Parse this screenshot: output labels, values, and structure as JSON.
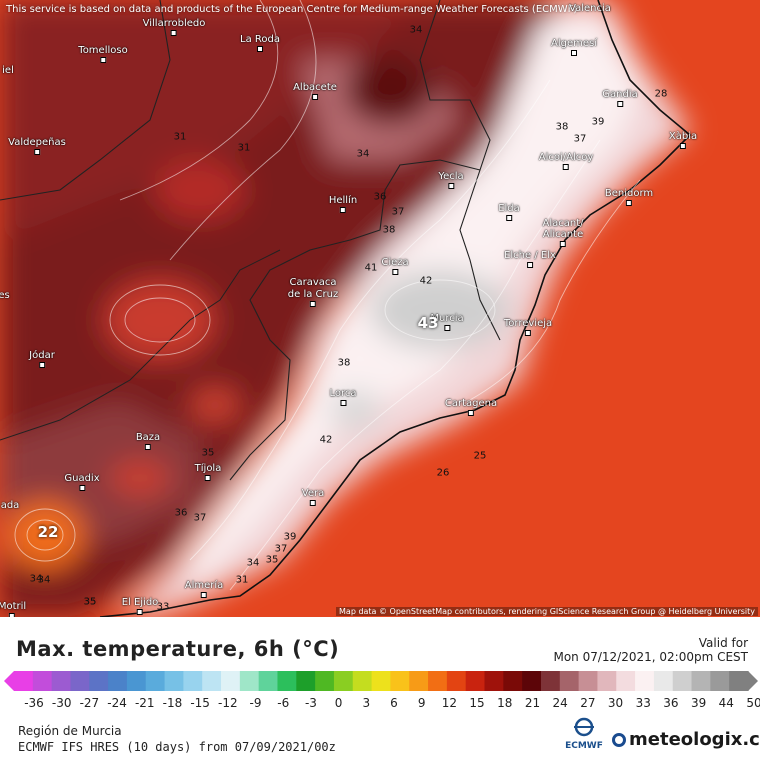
{
  "map": {
    "credit_top": "This service is based on data and products of the European Centre for Medium-range Weather Forecasts (ECMWF)",
    "credit_bottom": "Map data © OpenStreetMap contributors, rendering GIScience Research Group @ Heidelberg University",
    "cities": [
      {
        "name": "Villarrobledo"
      },
      {
        "name": "La Roda"
      },
      {
        "name": "Tomelloso"
      },
      {
        "name": "Albacete"
      },
      {
        "name": "Valdepeñas"
      },
      {
        "name": "Algemesí"
      },
      {
        "name": "Gandia"
      },
      {
        "name": "Xàbia"
      },
      {
        "name": "Alcoi/Alcoy"
      },
      {
        "name": "Yecla"
      },
      {
        "name": "Hellín"
      },
      {
        "name": "Benidorm"
      },
      {
        "name": "Elda"
      },
      {
        "name": "Alacant/"
      },
      {
        "name": "Alicante"
      },
      {
        "name": "Elche / Elx"
      },
      {
        "name": "Cieza"
      },
      {
        "name": "Caravaca"
      },
      {
        "name": "de la Cruz"
      },
      {
        "name": "Murcia"
      },
      {
        "name": "Torrevieja"
      },
      {
        "name": "Jódar"
      },
      {
        "name": "Lorca"
      },
      {
        "name": "Cartagena"
      },
      {
        "name": "Baza"
      },
      {
        "name": "Tíjola"
      },
      {
        "name": "Guadix"
      },
      {
        "name": "Vera"
      },
      {
        "name": "Almería"
      },
      {
        "name": "El Ejido"
      },
      {
        "name": "Motril"
      },
      {
        "name": "iel"
      },
      {
        "name": "es"
      },
      {
        "name": "ada"
      },
      {
        "name": "Valencia"
      }
    ],
    "contour_labels": [
      "34",
      "31",
      "31",
      "34",
      "36",
      "37",
      "38",
      "41",
      "42",
      "43",
      "38",
      "42",
      "38",
      "39",
      "37",
      "28",
      "25",
      "26",
      "35",
      "36",
      "37",
      "39",
      "37",
      "35",
      "34",
      "34",
      "35",
      "33",
      "31",
      "22",
      "34",
      "35"
    ]
  },
  "legend": {
    "title": "Max. temperature, 6h (°C)",
    "valid_label": "Valid for",
    "valid_date": "Mon 07/12/2021, 02:00pm CEST",
    "ticks": [
      "-36",
      "-30",
      "-27",
      "-24",
      "-21",
      "-18",
      "-15",
      "-12",
      "-9",
      "-6",
      "-3",
      "0",
      "3",
      "6",
      "9",
      "12",
      "15",
      "18",
      "21",
      "24",
      "27",
      "30",
      "33",
      "36",
      "39",
      "44",
      "50"
    ],
    "colors": [
      "#e83fe6",
      "#c24ddb",
      "#9c5bd1",
      "#7a66c9",
      "#5c73c6",
      "#4b82c9",
      "#4a96d2",
      "#5aabdc",
      "#77c1e6",
      "#98d3ee",
      "#bde4f3",
      "#dff2f6",
      "#9fe6c8",
      "#5fd39b",
      "#2cbf5c",
      "#1d9f2a",
      "#4fb823",
      "#8ace22",
      "#c4dd1f",
      "#ede11c",
      "#f9c21a",
      "#f79b17",
      "#f26e14",
      "#e34412",
      "#c9230f",
      "#9f120b",
      "#7a0a07",
      "#5c0508",
      "#7e3338",
      "#a5646a",
      "#c78f95",
      "#e1b7bc",
      "#f3dcdf",
      "#fbf1f2",
      "#e9e9e9",
      "#cfcfcf",
      "#b4b4b4",
      "#9a9a9a",
      "#808080"
    ],
    "region": "Región de Murcia",
    "model": "ECMWF IFS HRES (10 days) from 07/09/2021/00z",
    "ecmwf_logo_text": "ECMWF",
    "brand": "meteologix.com"
  }
}
